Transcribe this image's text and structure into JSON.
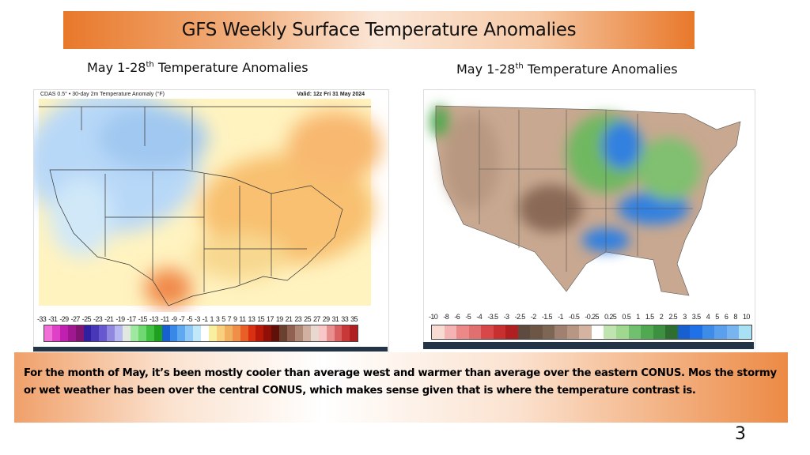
{
  "title": "GFS Weekly Surface Temperature Anomalies",
  "left_panel": {
    "subtitle_main": "May 1-28",
    "subtitle_sup": "th",
    "subtitle_rest": " Temperature Anomalies",
    "map_header_left": "CDAS 0.5° • 30-day 2m Temperature Anomaly (°F)",
    "map_header_right": "Valid: 12z Fri 31 May 2024",
    "colorbar_labels": [
      "-33",
      "-31",
      "-29",
      "-27",
      "-25",
      "-23",
      "-21",
      "-19",
      "-17",
      "-15",
      "-13",
      "-11",
      "-9",
      "-7",
      "-5",
      "-3",
      "-1",
      "1",
      "3",
      "5",
      "7",
      "9",
      "11",
      "13",
      "15",
      "17",
      "19",
      "21",
      "23",
      "25",
      "27",
      "29",
      "31",
      "33",
      "35"
    ],
    "colorbar_colors": [
      "#f070d8",
      "#e040c8",
      "#c020b0",
      "#a01890",
      "#801470",
      "#3020a0",
      "#4838b8",
      "#6858d0",
      "#9088e0",
      "#b8b8f0",
      "#e0e8e0",
      "#a0e8a0",
      "#70d870",
      "#40c040",
      "#20a020",
      "#1860d0",
      "#3888e8",
      "#60a8f0",
      "#90c8f8",
      "#c0e8f8",
      "#ffffff",
      "#f8f0a0",
      "#f8d080",
      "#f0b060",
      "#f09048",
      "#e86028",
      "#d83010",
      "#b81808",
      "#901008",
      "#601008",
      "#6a4030",
      "#906050",
      "#b08878",
      "#d0b0a0",
      "#e8d8d0",
      "#f8c8c8",
      "#e89090",
      "#d86060",
      "#c83838",
      "#b02020"
    ]
  },
  "right_panel": {
    "subtitle_main": "May 1-28",
    "subtitle_sup": "th",
    "subtitle_rest": " Temperature Anomalies",
    "colorbar_labels": [
      "-10",
      "-8",
      "-6",
      "-5",
      "-4",
      "-3.5",
      "-3",
      "-2.5",
      "-2",
      "-1.5",
      "-1",
      "-0.5",
      "-0.25",
      "0.25",
      "0.5",
      "1",
      "1.5",
      "2",
      "2.5",
      "3",
      "3.5",
      "4",
      "5",
      "6",
      "8",
      "10"
    ],
    "colorbar_colors": [
      "#f8dcd4",
      "#f4b4b4",
      "#ec8888",
      "#e07070",
      "#d84848",
      "#c83030",
      "#b02020",
      "#5e4a3e",
      "#6e5646",
      "#7e6654",
      "#a08070",
      "#b89684",
      "#d4b4a0",
      "#ffffff",
      "#c0e4b0",
      "#a0d890",
      "#70c070",
      "#50a850",
      "#3c9040",
      "#2e6e30",
      "#1860d0",
      "#2070e8",
      "#3c8ce8",
      "#5aa0ec",
      "#78b4f0",
      "#a8e0f4"
    ]
  },
  "summary": "For the month of May, it’s been mostly cooler than average west and warmer than average over the eastern CONUS. Mos the stormy or wet weather has been over the central CONUS, which makes sense given that is where the temperature contrast is.",
  "page_number": "3"
}
